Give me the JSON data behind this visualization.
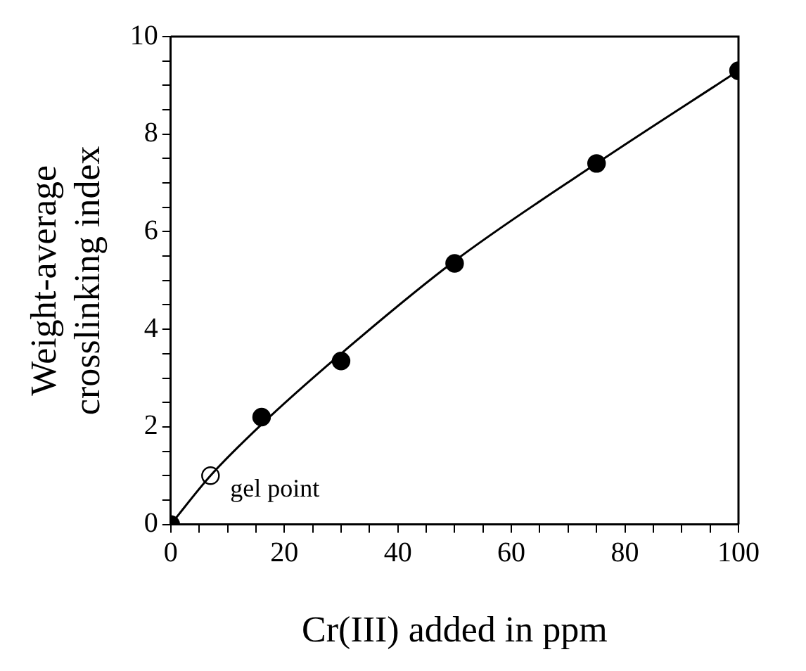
{
  "chart_data": {
    "type": "scatter",
    "xlabel": "Cr(III) added in ppm",
    "ylabel": "Weight-average\ncrosslinking index",
    "xlim": [
      0,
      100
    ],
    "ylim": [
      0,
      10
    ],
    "xticks": [
      0,
      {
        "value": 5,
        "label": null
      },
      {
        "value": 10,
        "label": null
      },
      {
        "value": 15,
        "label": null
      },
      20,
      {
        "value": 25,
        "label": null
      },
      {
        "value": 30,
        "label": null
      },
      {
        "value": 35,
        "label": null
      },
      40,
      {
        "value": 45,
        "label": null
      },
      {
        "value": 50,
        "label": null
      },
      {
        "value": 55,
        "label": null
      },
      60,
      {
        "value": 65,
        "label": null
      },
      {
        "value": 70,
        "label": null
      },
      {
        "value": 75,
        "label": null
      },
      80,
      {
        "value": 85,
        "label": null
      },
      {
        "value": 90,
        "label": null
      },
      {
        "value": 95,
        "label": null
      },
      100
    ],
    "yticks": [
      0,
      {
        "value": 0.5,
        "label": null
      },
      {
        "value": 1,
        "label": null
      },
      {
        "value": 1.5,
        "label": null
      },
      2,
      {
        "value": 2.5,
        "label": null
      },
      {
        "value": 3,
        "label": null
      },
      {
        "value": 3.5,
        "label": null
      },
      4,
      {
        "value": 4.5,
        "label": null
      },
      {
        "value": 5,
        "label": null
      },
      {
        "value": 5.5,
        "label": null
      },
      6,
      {
        "value": 6.5,
        "label": null
      },
      {
        "value": 7,
        "label": null
      },
      {
        "value": 7.5,
        "label": null
      },
      8,
      {
        "value": 8.5,
        "label": null
      },
      {
        "value": 9,
        "label": null
      },
      {
        "value": 9.5,
        "label": null
      },
      10
    ],
    "grid": false,
    "legend": false,
    "series": [
      {
        "type": "line",
        "marker": "none",
        "color": "#000000",
        "x": [
          0,
          7,
          16,
          30,
          50,
          75,
          100
        ],
        "values": [
          0,
          1,
          2.05,
          3.5,
          5.4,
          7.4,
          9.3
        ]
      },
      {
        "marker": "circle",
        "color": "#000000",
        "x": [
          0,
          16,
          30,
          50,
          75,
          100
        ],
        "values": [
          0,
          2.2,
          3.35,
          5.35,
          7.4,
          9.3
        ]
      },
      {
        "marker": "circle",
        "color": "#000000",
        "x": [
          7
        ],
        "values": [
          1
        ]
      }
    ],
    "annotations": [
      {
        "text": "gel point",
        "x": 7,
        "y": 1
      }
    ]
  }
}
